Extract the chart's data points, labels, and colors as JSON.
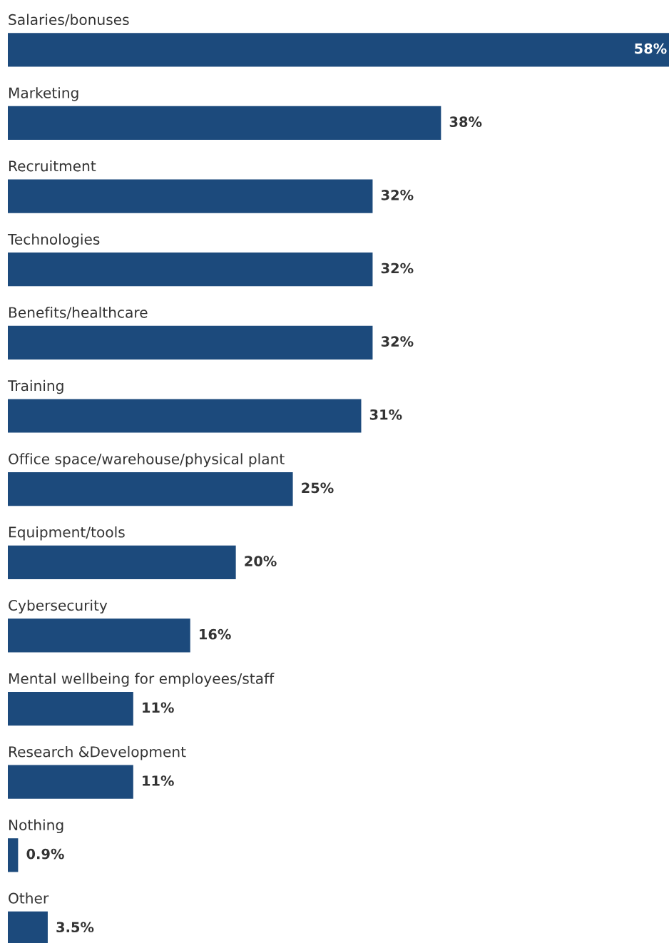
{
  "chart_data": {
    "type": "bar",
    "orientation": "horizontal",
    "color": "#1c4a7c",
    "categories": [
      "Salaries/bonuses",
      "Marketing",
      "Recruitment",
      "Technologies",
      "Benefits/healthcare",
      "Training",
      "Office space/warehouse/physical plant",
      "Equipment/tools",
      "Cybersecurity",
      "Mental wellbeing for employees/staff",
      "Research &Development",
      "Nothing",
      "Other"
    ],
    "values": [
      58,
      38,
      32,
      32,
      32,
      31,
      25,
      20,
      16,
      11,
      11,
      0.9,
      3.5
    ],
    "value_labels": [
      "58%",
      "38%",
      "32%",
      "32%",
      "32%",
      "31%",
      "25%",
      "20%",
      "16%",
      "11%",
      "11%",
      "0.9%",
      "3.5%"
    ],
    "grid": false,
    "legend": false,
    "tick_labels": false
  }
}
